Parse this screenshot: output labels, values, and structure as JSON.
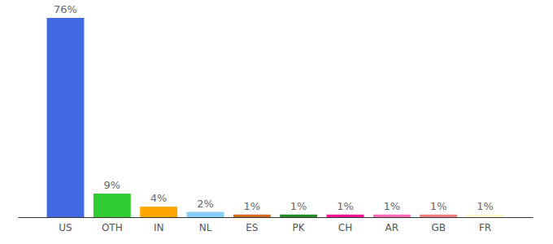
{
  "chart_data": {
    "type": "bar",
    "categories": [
      "US",
      "OTH",
      "IN",
      "NL",
      "ES",
      "PK",
      "CH",
      "AR",
      "GB",
      "FR"
    ],
    "values": [
      76,
      9,
      4,
      2,
      1,
      1,
      1,
      1,
      1,
      1
    ],
    "value_labels": [
      "76%",
      "9%",
      "4%",
      "2%",
      "1%",
      "1%",
      "1%",
      "1%",
      "1%",
      "1%"
    ],
    "colors": [
      "#4169e1",
      "#32cd32",
      "#ffa500",
      "#87cefa",
      "#d2691e",
      "#228b22",
      "#ff1493",
      "#ff69b4",
      "#f08080",
      "#fffacd"
    ],
    "data_labels": true,
    "tick_labels": "x"
  }
}
